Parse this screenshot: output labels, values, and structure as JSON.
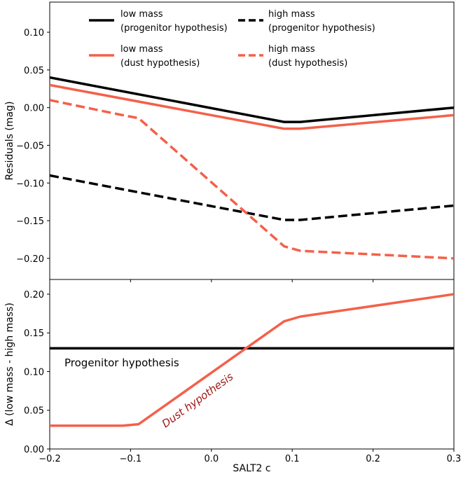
{
  "chart_data": [
    {
      "type": "line",
      "panel": "top",
      "xlabel": "",
      "ylabel": "Residuals (mag)",
      "xlim": [
        -0.2,
        0.3
      ],
      "ylim": [
        -0.228,
        0.14
      ],
      "yticks": [
        0.1,
        0.05,
        0.0,
        -0.05,
        -0.1,
        -0.15,
        -0.2
      ],
      "ytick_labels": [
        "0.10",
        "0.05",
        "0.00",
        "−0.05",
        "−0.10",
        "−0.15",
        "−0.20"
      ],
      "legend_position": "top",
      "series": [
        {
          "name": "low mass\n(progenitor hypothesis)",
          "label_line1": "low mass",
          "label_line2": "(progenitor hypothesis)",
          "color": "#000000",
          "dashed": false,
          "x": [
            -0.2,
            0.09,
            0.11,
            0.3
          ],
          "y": [
            0.04,
            -0.019,
            -0.019,
            0.0
          ]
        },
        {
          "name": "high mass\n(progenitor hypothesis)",
          "label_line1": "high mass",
          "label_line2": "(progenitor hypothesis)",
          "color": "#000000",
          "dashed": true,
          "x": [
            -0.2,
            0.09,
            0.11,
            0.3
          ],
          "y": [
            -0.09,
            -0.149,
            -0.149,
            -0.13
          ]
        },
        {
          "name": "low mass\n(dust hypothesis)",
          "label_line1": "low mass",
          "label_line2": "(dust hypothesis)",
          "color": "#f4604a",
          "dashed": false,
          "x": [
            -0.2,
            0.09,
            0.11,
            0.3
          ],
          "y": [
            0.03,
            -0.028,
            -0.028,
            -0.01
          ]
        },
        {
          "name": "high mass\n(dust hypothesis)",
          "label_line1": "high mass",
          "label_line2": "(dust hypothesis)",
          "color": "#f4604a",
          "dashed": true,
          "x": [
            -0.2,
            -0.11,
            -0.09,
            0.09,
            0.11,
            0.3
          ],
          "y": [
            0.01,
            -0.01,
            -0.014,
            -0.184,
            -0.19,
            -0.2
          ]
        }
      ]
    },
    {
      "type": "line",
      "panel": "bottom",
      "xlabel": "SALT2 c",
      "ylabel": "Δ (low mass - high mass)",
      "xlim": [
        -0.2,
        0.3
      ],
      "ylim": [
        0.0,
        0.219
      ],
      "xticks": [
        -0.2,
        -0.1,
        0.0,
        0.1,
        0.2,
        0.3
      ],
      "xtick_labels": [
        "−0.2",
        "−0.1",
        "0.0",
        "0.1",
        "0.2",
        "0.3"
      ],
      "yticks": [
        0.0,
        0.05,
        0.1,
        0.15,
        0.2
      ],
      "ytick_labels": [
        "0.00",
        "0.05",
        "0.10",
        "0.15",
        "0.20"
      ],
      "series": [
        {
          "name": "Progenitor hypothesis",
          "color": "#000000",
          "x": [
            -0.2,
            0.3
          ],
          "y": [
            0.13,
            0.13
          ]
        },
        {
          "name": "Dust hypothesis",
          "color": "#f4604a",
          "x": [
            -0.2,
            -0.11,
            -0.09,
            0.09,
            0.11,
            0.3
          ],
          "y": [
            0.03,
            0.03,
            0.032,
            0.165,
            0.171,
            0.2
          ]
        }
      ],
      "annotations": [
        {
          "text": "Progenitor hypothesis",
          "color": "#000000"
        },
        {
          "text": "Dust hypothesis",
          "color": "#a01818"
        }
      ]
    }
  ]
}
